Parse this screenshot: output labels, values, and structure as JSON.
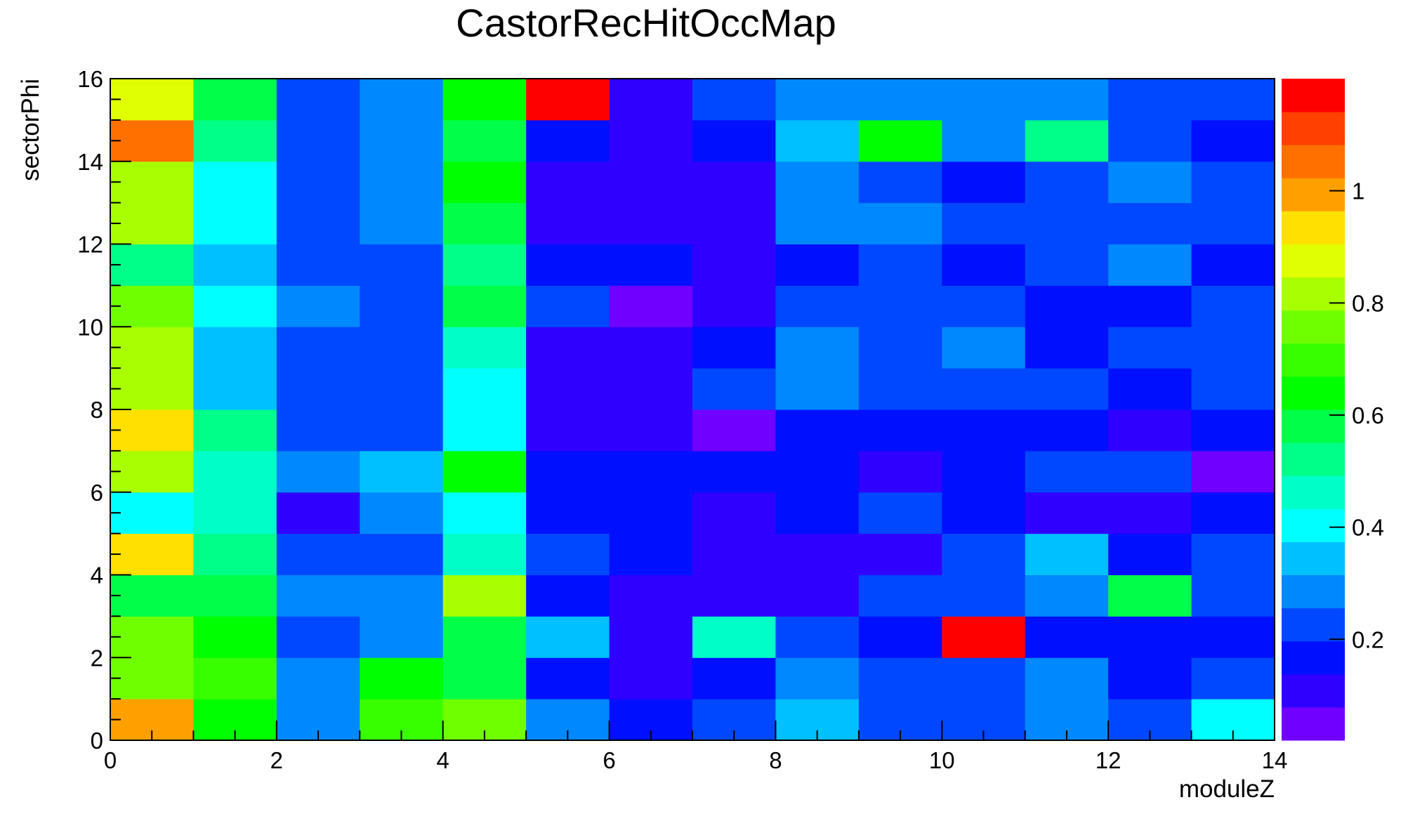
{
  "chart_data": {
    "type": "heatmap",
    "title": "CastorRecHitOccMap",
    "xlabel": "moduleZ",
    "ylabel": "sectorPhi",
    "xlim": [
      0,
      14
    ],
    "ylim": [
      0,
      16
    ],
    "zlim": [
      0.02,
      1.2
    ],
    "x_ticks": [
      0,
      2,
      4,
      6,
      8,
      10,
      12,
      14
    ],
    "y_ticks": [
      0,
      2,
      4,
      6,
      8,
      10,
      12,
      14,
      16
    ],
    "z_ticks": [
      0.2,
      0.4,
      0.6,
      0.8,
      1
    ],
    "colorscale": "rainbow",
    "grid": false,
    "rows_bottom_to_top": [
      [
        1.0,
        0.62,
        0.28,
        0.69,
        0.77,
        0.28,
        0.14,
        0.22,
        0.36,
        0.22,
        0.22,
        0.28,
        0.22,
        0.4
      ],
      [
        0.77,
        0.69,
        0.28,
        0.66,
        0.59,
        0.14,
        0.1,
        0.14,
        0.28,
        0.22,
        0.22,
        0.28,
        0.14,
        0.22
      ],
      [
        0.77,
        0.66,
        0.22,
        0.28,
        0.59,
        0.36,
        0.1,
        0.48,
        0.22,
        0.14,
        1.2,
        0.14,
        0.14,
        0.14
      ],
      [
        0.59,
        0.59,
        0.28,
        0.28,
        0.8,
        0.14,
        0.1,
        0.1,
        0.1,
        0.22,
        0.22,
        0.28,
        0.59,
        0.22
      ],
      [
        0.92,
        0.55,
        0.22,
        0.22,
        0.48,
        0.22,
        0.14,
        0.1,
        0.1,
        0.1,
        0.22,
        0.36,
        0.14,
        0.22
      ],
      [
        0.4,
        0.48,
        0.1,
        0.28,
        0.4,
        0.14,
        0.14,
        0.1,
        0.14,
        0.22,
        0.14,
        0.1,
        0.1,
        0.14
      ],
      [
        0.8,
        0.48,
        0.28,
        0.36,
        0.66,
        0.14,
        0.14,
        0.14,
        0.14,
        0.1,
        0.14,
        0.22,
        0.22,
        0.06
      ],
      [
        0.92,
        0.55,
        0.22,
        0.22,
        0.4,
        0.1,
        0.1,
        0.06,
        0.14,
        0.14,
        0.14,
        0.14,
        0.1,
        0.14
      ],
      [
        0.8,
        0.36,
        0.22,
        0.22,
        0.4,
        0.1,
        0.1,
        0.22,
        0.28,
        0.22,
        0.22,
        0.22,
        0.14,
        0.22
      ],
      [
        0.8,
        0.36,
        0.22,
        0.22,
        0.48,
        0.1,
        0.1,
        0.14,
        0.28,
        0.22,
        0.28,
        0.14,
        0.22,
        0.22
      ],
      [
        0.73,
        0.4,
        0.28,
        0.22,
        0.59,
        0.22,
        0.06,
        0.1,
        0.22,
        0.22,
        0.22,
        0.14,
        0.14,
        0.22
      ],
      [
        0.51,
        0.36,
        0.22,
        0.22,
        0.55,
        0.14,
        0.14,
        0.1,
        0.14,
        0.22,
        0.14,
        0.22,
        0.28,
        0.14
      ],
      [
        0.84,
        0.4,
        0.22,
        0.28,
        0.59,
        0.1,
        0.1,
        0.1,
        0.28,
        0.28,
        0.22,
        0.22,
        0.22,
        0.22
      ],
      [
        0.84,
        0.4,
        0.22,
        0.28,
        0.66,
        0.1,
        0.1,
        0.1,
        0.28,
        0.22,
        0.14,
        0.22,
        0.28,
        0.22
      ],
      [
        1.03,
        0.55,
        0.22,
        0.28,
        0.59,
        0.14,
        0.1,
        0.14,
        0.36,
        0.62,
        0.28,
        0.55,
        0.22,
        0.14
      ],
      [
        0.88,
        0.59,
        0.22,
        0.28,
        0.66,
        1.2,
        0.1,
        0.22,
        0.28,
        0.28,
        0.28,
        0.28,
        0.22,
        0.22
      ]
    ]
  }
}
